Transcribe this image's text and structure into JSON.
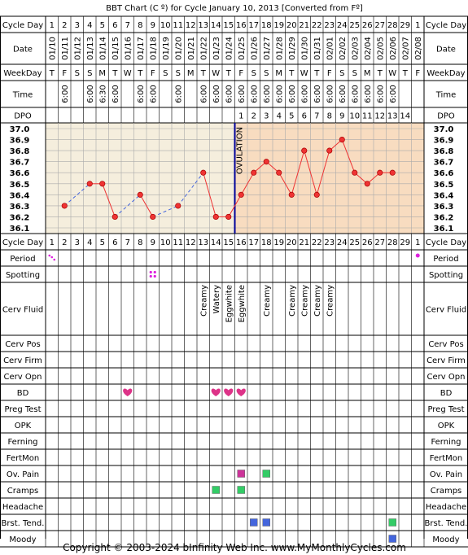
{
  "chart_data": {
    "type": "line",
    "title": "BBT Chart (C º) for Cycle January 10, 2013  [Converted from Fº]",
    "row_labels": {
      "cycle_day": "Cycle Day",
      "date": "Date",
      "weekday": "WeekDay",
      "time": "Time",
      "dpo": "DPO"
    },
    "cycle_days": [
      "1",
      "2",
      "3",
      "4",
      "5",
      "6",
      "7",
      "8",
      "9",
      "10",
      "11",
      "12",
      "13",
      "14",
      "15",
      "16",
      "17",
      "18",
      "19",
      "20",
      "21",
      "22",
      "23",
      "24",
      "25",
      "26",
      "27",
      "28",
      "29",
      "1"
    ],
    "dates": [
      "01/10",
      "01/11",
      "01/12",
      "01/13",
      "01/14",
      "01/15",
      "01/16",
      "01/17",
      "01/18",
      "01/19",
      "01/20",
      "01/21",
      "01/22",
      "01/23",
      "01/24",
      "01/25",
      "01/26",
      "01/27",
      "01/28",
      "01/29",
      "01/30",
      "01/31",
      "02/01",
      "02/02",
      "02/03",
      "02/04",
      "02/05",
      "02/06",
      "02/07",
      "02/08"
    ],
    "weekdays": [
      "T",
      "F",
      "S",
      "S",
      "M",
      "T",
      "W",
      "T",
      "F",
      "S",
      "S",
      "M",
      "T",
      "W",
      "T",
      "F",
      "S",
      "S",
      "M",
      "T",
      "W",
      "T",
      "F",
      "S",
      "S",
      "M",
      "T",
      "W",
      "T",
      "F"
    ],
    "times": [
      "",
      "6:00",
      "",
      "6:00",
      "6:30",
      "6:00",
      "",
      "6:00",
      "6:00",
      "",
      "6:00",
      "",
      "6:00",
      "6:00",
      "6:00",
      "6:00",
      "6:00",
      "6:00",
      "6:00",
      "6:00",
      "6:00",
      "6:00",
      "6:00",
      "6:00",
      "6:00",
      "6:00",
      "6:00",
      "6:00",
      "",
      ""
    ],
    "dpo": [
      "",
      "",
      "",
      "",
      "",
      "",
      "",
      "",
      "",
      "",
      "",
      "",
      "",
      "",
      "",
      "1",
      "2",
      "3",
      "4",
      "5",
      "6",
      "7",
      "8",
      "9",
      "10",
      "11",
      "12",
      "13",
      "14",
      ""
    ],
    "y_ticks": [
      "37.0",
      "36.9",
      "36.8",
      "36.7",
      "36.6",
      "36.5",
      "36.4",
      "36.3",
      "36.2",
      "36.1"
    ],
    "ylim": [
      36.1,
      37.0
    ],
    "temps": [
      null,
      36.3,
      null,
      36.5,
      36.5,
      36.2,
      null,
      36.4,
      36.2,
      null,
      36.3,
      null,
      36.6,
      36.2,
      36.2,
      36.4,
      36.6,
      36.7,
      36.6,
      36.4,
      36.8,
      36.4,
      36.8,
      36.9,
      36.6,
      36.5,
      36.6,
      36.6,
      null,
      null
    ],
    "ovulation_day_index": 14,
    "ovulation_label": "OVULATION",
    "symptom_rows": [
      {
        "label": "Period",
        "marks": [
          {
            "day": 0,
            "type": "dots"
          },
          {
            "day": 29,
            "type": "dot"
          }
        ]
      },
      {
        "label": "Spotting",
        "marks": [
          {
            "day": 8,
            "type": "spotting"
          }
        ]
      },
      {
        "label": "Cerv Fluid",
        "marks": [
          {
            "day": 12,
            "text": "Creamy"
          },
          {
            "day": 13,
            "text": "Watery"
          },
          {
            "day": 14,
            "text": "Eggwhite"
          },
          {
            "day": 15,
            "text": "Eggwhite"
          },
          {
            "day": 17,
            "text": "Creamy"
          },
          {
            "day": 19,
            "text": "Creamy"
          },
          {
            "day": 20,
            "text": "Creamy"
          },
          {
            "day": 21,
            "text": "Creamy"
          },
          {
            "day": 22,
            "text": "Creamy"
          }
        ]
      },
      {
        "label": "Cerv Pos",
        "marks": []
      },
      {
        "label": "Cerv Firm",
        "marks": []
      },
      {
        "label": "Cerv Opn",
        "marks": []
      },
      {
        "label": "BD",
        "marks": [
          {
            "day": 6,
            "type": "heart"
          },
          {
            "day": 13,
            "type": "heart"
          },
          {
            "day": 14,
            "type": "heart"
          },
          {
            "day": 15,
            "type": "heart"
          }
        ]
      },
      {
        "label": "Preg Test",
        "marks": []
      },
      {
        "label": "OPK",
        "marks": []
      },
      {
        "label": "Ferning",
        "marks": []
      },
      {
        "label": "FertMon",
        "marks": []
      },
      {
        "label": "Ov. Pain",
        "marks": [
          {
            "day": 15,
            "type": "square",
            "color": "#cc3399"
          },
          {
            "day": 17,
            "type": "square",
            "color": "#33cc66"
          }
        ]
      },
      {
        "label": "Cramps",
        "marks": [
          {
            "day": 13,
            "type": "square",
            "color": "#33cc66"
          },
          {
            "day": 15,
            "type": "square",
            "color": "#33cc66"
          }
        ]
      },
      {
        "label": "Headache",
        "marks": []
      },
      {
        "label": "Brst. Tend.",
        "marks": [
          {
            "day": 16,
            "type": "square",
            "color": "#4466dd"
          },
          {
            "day": 17,
            "type": "square",
            "color": "#4466dd"
          },
          {
            "day": 27,
            "type": "square",
            "color": "#33cc66"
          }
        ]
      },
      {
        "label": "Moody",
        "marks": [
          {
            "day": 27,
            "type": "square",
            "color": "#4466dd"
          }
        ]
      }
    ],
    "colors": {
      "pre_ovulation_bg": "#f5eedd",
      "post_ovulation_bg": "#f8dcc0",
      "line": "#ee3333",
      "dashed_line": "#4466dd",
      "ovulation_line": "#000099",
      "grid": "#aaaaaa",
      "heart": "#dd3388",
      "period_dot": "#dd22dd"
    }
  },
  "footer": "Copyright © 2003-2024 bInfinity Web Inc.    www.MyMonthlyCycles.com"
}
